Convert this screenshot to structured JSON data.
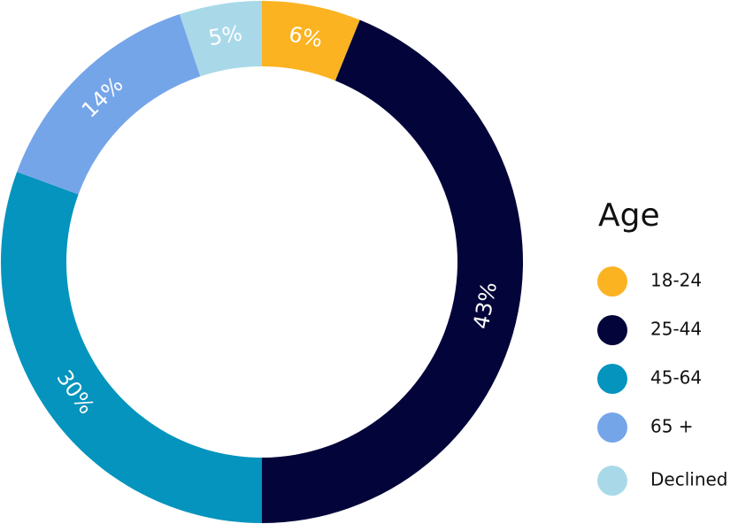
{
  "chart_data": {
    "type": "donut",
    "legend_title": "Age",
    "categories": [
      "18-24",
      "25-44",
      "45-64",
      "65 +",
      "Declined"
    ],
    "values": [
      6,
      43,
      30,
      14,
      5
    ],
    "value_labels": [
      "6%",
      "43%",
      "30%",
      "14%",
      "5%"
    ],
    "colors": [
      "#fbb321",
      "#03053a",
      "#0494bd",
      "#75a5e9",
      "#a9d9e9"
    ],
    "legend": "right"
  }
}
